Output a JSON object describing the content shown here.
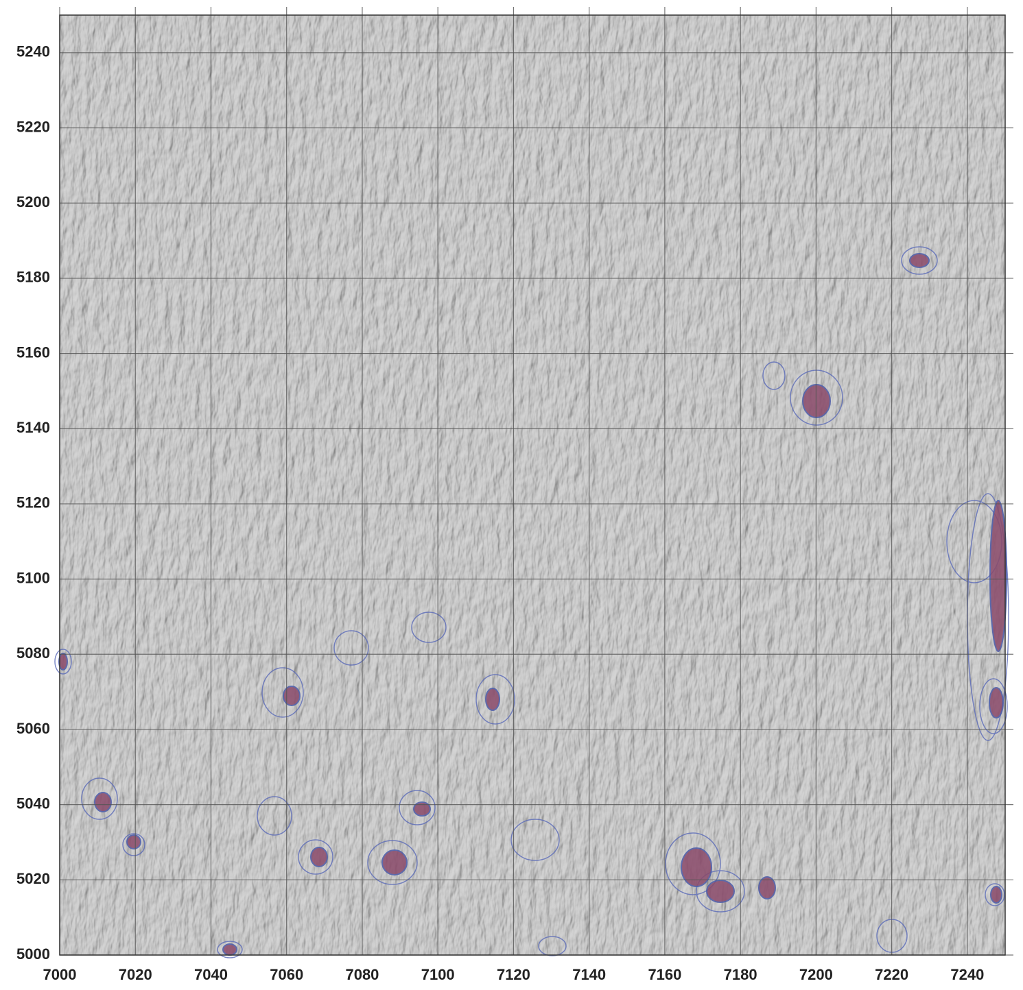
{
  "chart_data": {
    "type": "map",
    "xlim": [
      7000,
      7250
    ],
    "ylim": [
      5000,
      5250
    ],
    "xticks": [
      7000,
      7020,
      7040,
      7060,
      7080,
      7100,
      7120,
      7140,
      7160,
      7180,
      7200,
      7220,
      7240
    ],
    "yticks": [
      5000,
      5020,
      5040,
      5060,
      5080,
      5100,
      5120,
      5140,
      5160,
      5180,
      5200,
      5220,
      5240
    ],
    "grid": true
  }
}
